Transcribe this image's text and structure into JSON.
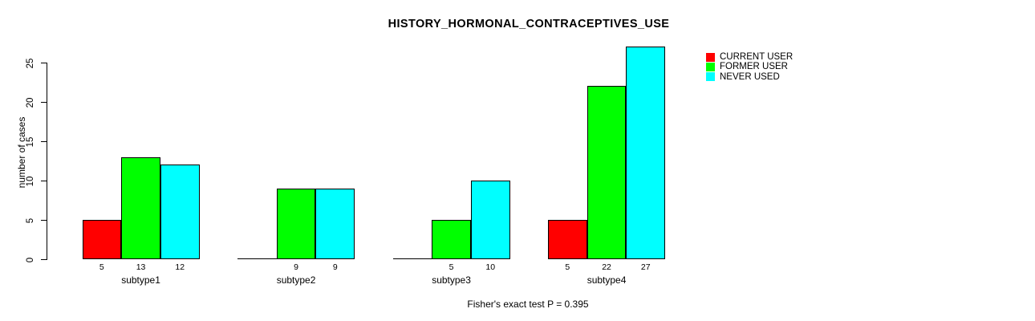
{
  "chart_data": {
    "type": "bar",
    "title": "HISTORY_HORMONAL_CONTRACEPTIVES_USE",
    "ylabel": "number of cases",
    "xlabel": "",
    "footer": "Fisher's exact test P = 0.395",
    "categories": [
      "subtype1",
      "subtype2",
      "subtype3",
      "subtype4"
    ],
    "series": [
      {
        "name": "CURRENT USER",
        "color": "#ff0000",
        "values": [
          5,
          0,
          0,
          5
        ]
      },
      {
        "name": "FORMER USER",
        "color": "#00ff00",
        "values": [
          13,
          9,
          5,
          22
        ]
      },
      {
        "name": "NEVER USED",
        "color": "#00ffff",
        "values": [
          12,
          9,
          10,
          27
        ]
      }
    ],
    "bar_value_labels": {
      "subtype1": [
        "5",
        "13",
        "12"
      ],
      "subtype2": [
        "",
        "9",
        "9"
      ],
      "subtype3": [
        "",
        "5",
        "10"
      ],
      "subtype4": [
        "5",
        "22",
        "27"
      ]
    },
    "ylim": [
      0,
      25
    ],
    "yticks": [
      0,
      5,
      10,
      15,
      20,
      25
    ],
    "legend_position": "top-right",
    "grid": false,
    "background": "#ffffff",
    "axis_color": "#000000"
  }
}
